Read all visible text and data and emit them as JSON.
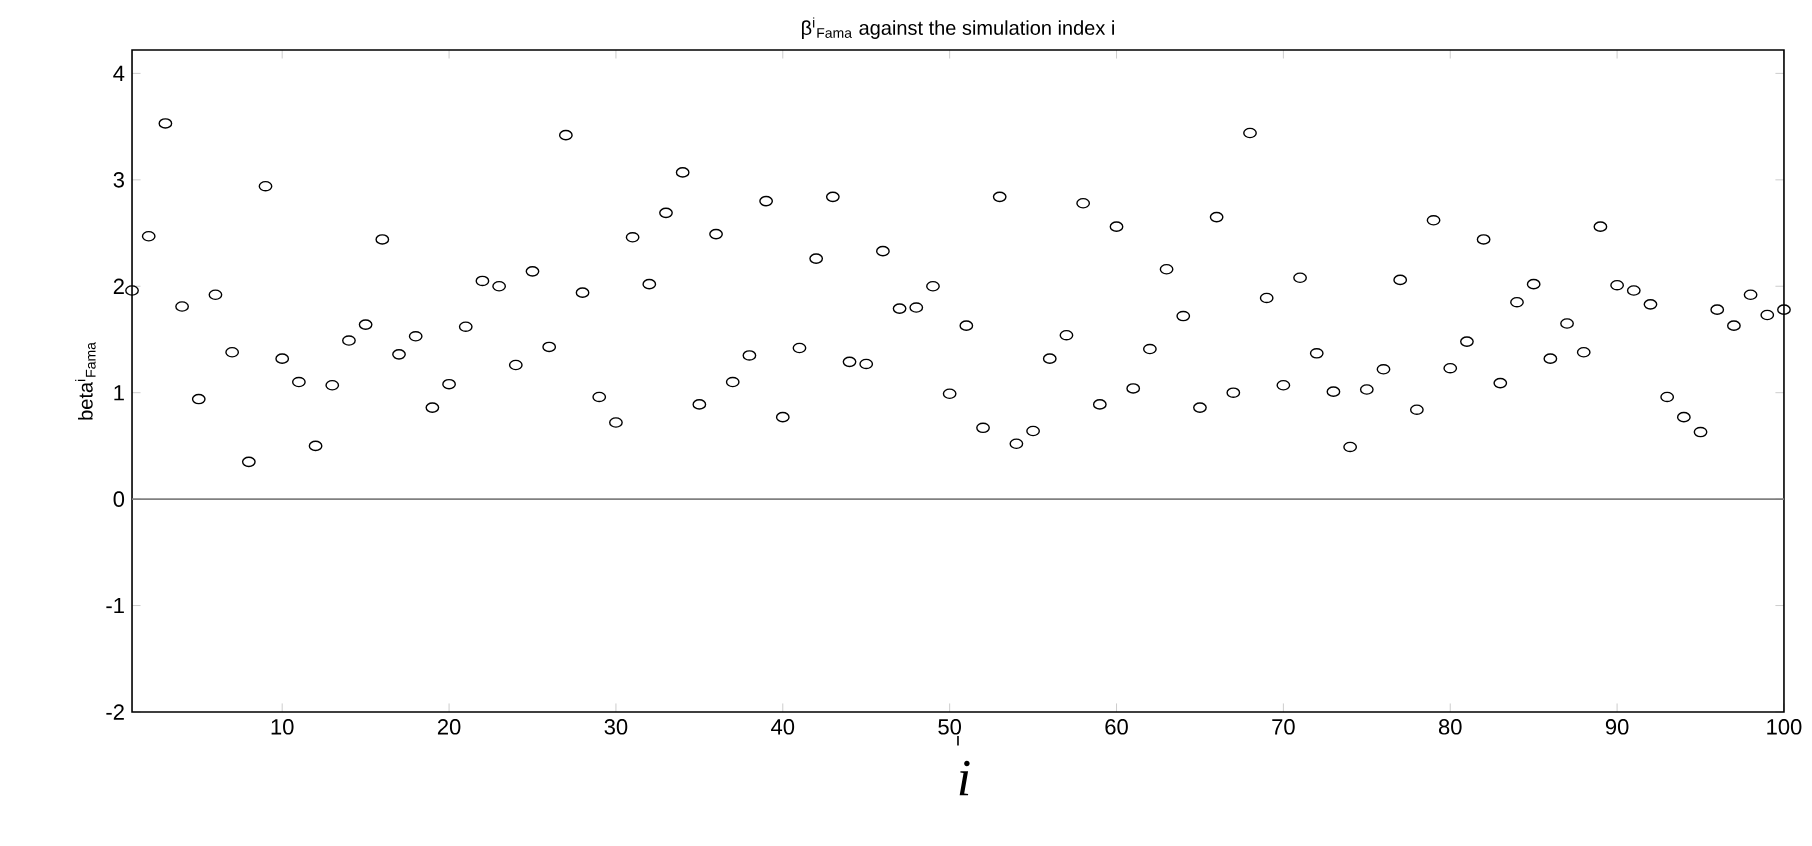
{
  "chart_data": {
    "type": "scatter",
    "title": "β$^{i}$$_{Fama}$ against the simulation index i",
    "xlabel": "i",
    "ylabel": "beta$^{i}$$_{Fama}$",
    "annotations": [
      "i"
    ],
    "x": [
      1,
      2,
      3,
      4,
      5,
      6,
      7,
      8,
      9,
      10,
      11,
      12,
      13,
      14,
      15,
      16,
      17,
      18,
      19,
      20,
      21,
      22,
      23,
      24,
      25,
      26,
      27,
      28,
      29,
      30,
      31,
      32,
      33,
      34,
      35,
      36,
      37,
      38,
      39,
      40,
      41,
      42,
      43,
      44,
      45,
      46,
      47,
      48,
      49,
      50,
      51,
      52,
      53,
      54,
      55,
      56,
      57,
      58,
      59,
      60,
      61,
      62,
      63,
      64,
      65,
      66,
      67,
      68,
      69,
      70,
      71,
      72,
      73,
      74,
      75,
      76,
      77,
      78,
      79,
      80,
      81,
      82,
      83,
      84,
      85,
      86,
      87,
      88,
      89,
      90,
      91,
      92,
      93,
      94,
      95,
      96,
      97,
      98,
      99,
      100
    ],
    "series": [
      {
        "color": "#000000",
        "values": [
          1.96,
          2.47,
          3.53,
          1.81,
          0.94,
          1.92,
          1.38,
          0.35,
          2.94,
          1.32,
          1.1,
          0.5,
          1.07,
          1.49,
          1.64,
          2.44,
          1.36,
          1.53,
          0.86,
          1.08,
          1.62,
          2.05,
          2.0,
          1.26,
          2.14,
          1.43,
          3.42,
          1.94,
          0.96,
          0.72,
          2.46,
          2.02,
          2.69,
          3.07,
          0.89,
          2.49,
          1.1,
          1.35,
          2.8,
          0.77,
          1.42,
          2.26,
          2.84,
          1.29,
          1.27,
          2.33,
          1.79,
          1.8,
          2.0,
          0.99,
          1.63,
          0.67,
          2.84,
          0.52,
          0.64,
          1.32,
          1.54,
          2.78,
          0.89,
          2.56,
          1.04,
          1.41,
          2.16,
          1.72,
          0.86,
          2.65,
          1.0,
          3.44,
          1.89,
          1.07,
          2.08,
          1.37,
          1.01,
          0.49,
          1.03,
          1.22,
          2.06,
          0.84,
          2.62,
          1.23,
          1.48,
          2.44,
          1.09,
          1.85,
          2.02,
          1.32,
          1.65,
          1.38,
          2.56,
          2.01,
          1.96,
          1.83,
          0.96,
          0.77,
          0.63,
          1.78,
          1.63,
          1.92,
          1.73,
          1.78
        ]
      }
    ],
    "marker": "circle",
    "xlim": [
      1,
      100
    ],
    "ylim": [
      -2,
      4.22
    ],
    "xticks": [
      10,
      20,
      30,
      40,
      50,
      60,
      70,
      80,
      90,
      100
    ],
    "yticks": [
      -2,
      -1,
      0,
      1,
      2,
      3,
      4
    ],
    "ref_lines": [
      {
        "axis": "y",
        "value": 0,
        "color": "#808080"
      }
    ],
    "grid": false
  }
}
